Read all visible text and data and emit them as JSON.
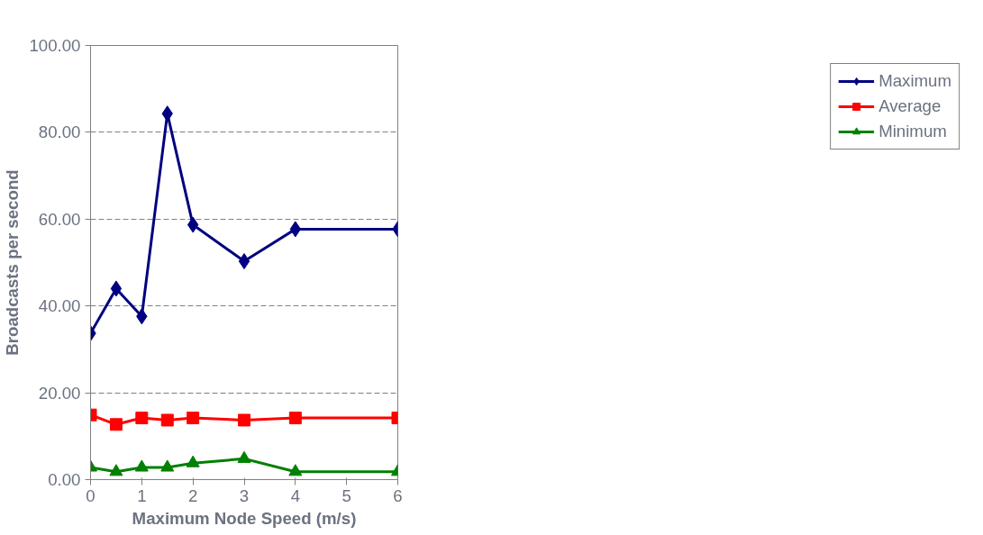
{
  "chart_data": {
    "type": "line",
    "xlabel": "Maximum Node Speed (m/s)",
    "ylabel": "Broadcasts per second",
    "x": [
      0,
      0.5,
      1,
      1.5,
      2,
      3,
      4,
      6
    ],
    "series": [
      {
        "name": "Maximum",
        "color": "#000080",
        "marker": "diamond",
        "values": [
          33.7,
          44.0,
          37.6,
          84.3,
          58.7,
          50.3,
          57.7,
          57.7
        ]
      },
      {
        "name": "Average",
        "color": "#ff0000",
        "marker": "square",
        "values": [
          14.9,
          12.7,
          14.2,
          13.7,
          14.2,
          13.7,
          14.2,
          14.2
        ]
      },
      {
        "name": "Minimum",
        "color": "#008000",
        "marker": "triangle",
        "values": [
          2.8,
          1.8,
          2.8,
          2.8,
          3.8,
          4.8,
          1.8,
          1.8
        ]
      }
    ],
    "xlim": [
      0,
      6
    ],
    "xticks": [
      0,
      1,
      2,
      3,
      4,
      5,
      6
    ],
    "ylim": [
      0,
      100
    ],
    "yticks": [
      {
        "value": 0,
        "label": "0.00"
      },
      {
        "value": 20,
        "label": "20.00"
      },
      {
        "value": 40,
        "label": "40.00"
      },
      {
        "value": 60,
        "label": "60.00"
      },
      {
        "value": 80,
        "label": "80.00"
      },
      {
        "value": 100,
        "label": "100.00"
      }
    ],
    "grid": "y",
    "legend": "right",
    "line_style": "solid"
  }
}
